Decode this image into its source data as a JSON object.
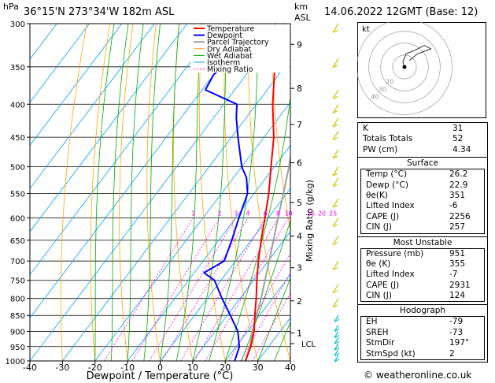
{
  "header": {
    "location": "36°15'N  273°34'W  182m  ASL",
    "datetime": "14.06.2022  12GMT  (Base: 12)",
    "hpa_label": "hPa",
    "km_label": "km",
    "asl_label": "ASL"
  },
  "chart_data": {
    "type": "skew-t",
    "xlabel": "Dewpoint / Temperature (°C)",
    "ylabel_right": "Mixing Ratio (g/kg)",
    "xlim": [
      -40,
      40
    ],
    "ylim_hpa": [
      1000,
      300
    ],
    "skew_deg_per_log_unit": 65,
    "x_ticks": [
      -40,
      -30,
      -20,
      -10,
      0,
      10,
      20,
      30,
      40
    ],
    "p_levels": [
      300,
      350,
      400,
      450,
      500,
      550,
      600,
      650,
      700,
      750,
      800,
      850,
      900,
      950,
      1000
    ],
    "km_ticks": [
      {
        "label": "9",
        "p": 323
      },
      {
        "label": "8",
        "p": 378
      },
      {
        "label": "7",
        "p": 430
      },
      {
        "label": "6",
        "p": 493
      },
      {
        "label": "5",
        "p": 568
      },
      {
        "label": "4",
        "p": 640
      },
      {
        "label": "3",
        "p": 717
      },
      {
        "label": "2",
        "p": 807
      },
      {
        "label": "1",
        "p": 905
      }
    ],
    "lcl": {
      "label": "LCL",
      "p": 940
    },
    "mixing_ratio_labels": [
      "1",
      "2",
      "3",
      "4",
      "6",
      "8",
      "10",
      "16",
      "20",
      "25"
    ],
    "mixing_ratios": [
      1,
      2,
      3,
      4,
      6,
      8,
      10,
      16,
      20,
      25
    ],
    "legend": [
      "Temperature",
      "Dewpoint",
      "Parcel Trajectory",
      "Dry Adiabat",
      "Wet Adiabat",
      "Isotherm",
      "Mixing Ratio"
    ],
    "colors": {
      "temperature": "#ff0000",
      "dewpoint": "#0000ff",
      "parcel": "#a0a0a0",
      "dry_adiabat": "#ffa500",
      "wet_adiabat": "#00aa00",
      "isotherm": "#00a0ff",
      "mixing_ratio": "#ff00ff"
    },
    "temperature": [
      [
        1000,
        26.2
      ],
      [
        950,
        24.5
      ],
      [
        900,
        22
      ],
      [
        850,
        18.5
      ],
      [
        800,
        15
      ],
      [
        750,
        11
      ],
      [
        700,
        7
      ],
      [
        650,
        3
      ],
      [
        600,
        -1
      ],
      [
        550,
        -5.5
      ],
      [
        500,
        -11
      ],
      [
        450,
        -17
      ],
      [
        400,
        -25
      ],
      [
        350,
        -33
      ],
      [
        300,
        -43
      ]
    ],
    "dewpoint": [
      [
        1000,
        22.9
      ],
      [
        950,
        21
      ],
      [
        900,
        17
      ],
      [
        850,
        11
      ],
      [
        800,
        4.5
      ],
      [
        750,
        -2
      ],
      [
        730,
        -7
      ],
      [
        700,
        -3.5
      ],
      [
        650,
        -6
      ],
      [
        600,
        -9
      ],
      [
        550,
        -12
      ],
      [
        520,
        -16
      ],
      [
        500,
        -20
      ],
      [
        450,
        -28
      ],
      [
        420,
        -33
      ],
      [
        400,
        -36
      ],
      [
        380,
        -49
      ],
      [
        360,
        -50
      ],
      [
        350,
        -49
      ],
      [
        330,
        -55
      ],
      [
        300,
        -57
      ]
    ],
    "parcel": [
      [
        1000,
        26.2
      ],
      [
        950,
        24.2
      ],
      [
        900,
        21.5
      ],
      [
        850,
        19
      ],
      [
        800,
        16.5
      ],
      [
        750,
        13.5
      ],
      [
        700,
        10.3
      ],
      [
        650,
        6.8
      ],
      [
        600,
        3
      ],
      [
        550,
        -1
      ],
      [
        500,
        -5.5
      ],
      [
        450,
        -11
      ],
      [
        400,
        -17.5
      ],
      [
        350,
        -25.5
      ],
      [
        300,
        -35
      ]
    ]
  },
  "hodograph": {
    "label": "kt",
    "ring_labels": [
      "20",
      "30",
      "40"
    ],
    "trace_kt": [
      [
        0,
        0
      ],
      [
        -1,
        3
      ],
      [
        1,
        8
      ],
      [
        6,
        10
      ],
      [
        12,
        13
      ],
      [
        16,
        11
      ],
      [
        8,
        8
      ],
      [
        3,
        4
      ]
    ]
  },
  "table": {
    "indices": [
      {
        "label": "K",
        "value": "31"
      },
      {
        "label": "Totals Totals",
        "value": "52"
      },
      {
        "label": "PW (cm)",
        "value": "4.34"
      }
    ],
    "surface": {
      "title": "Surface",
      "rows": [
        {
          "label": "Temp (°C)",
          "value": "26.2"
        },
        {
          "label": "Dewp (°C)",
          "value": "22.9"
        },
        {
          "label": "θe(K)",
          "value": "351"
        },
        {
          "label": "Lifted Index",
          "value": "-6"
        },
        {
          "label": "CAPE (J)",
          "value": "2256"
        },
        {
          "label": "CIN (J)",
          "value": "257"
        }
      ]
    },
    "most_unstable": {
      "title": "Most Unstable",
      "rows": [
        {
          "label": "Pressure (mb)",
          "value": "951"
        },
        {
          "label": "θe (K)",
          "value": "355"
        },
        {
          "label": "Lifted Index",
          "value": "-7"
        },
        {
          "label": "CAPE (J)",
          "value": "2931"
        },
        {
          "label": "CIN (J)",
          "value": "124"
        }
      ]
    },
    "hodograph_stats": {
      "title": "Hodograph",
      "rows": [
        {
          "label": "EH",
          "value": "-79"
        },
        {
          "label": "SREH",
          "value": "-73"
        },
        {
          "label": "StmDir",
          "value": "197°"
        },
        {
          "label": "StmSpd (kt)",
          "value": "2"
        }
      ]
    }
  },
  "footer": {
    "copyright": "© weatheronline.co.uk"
  }
}
